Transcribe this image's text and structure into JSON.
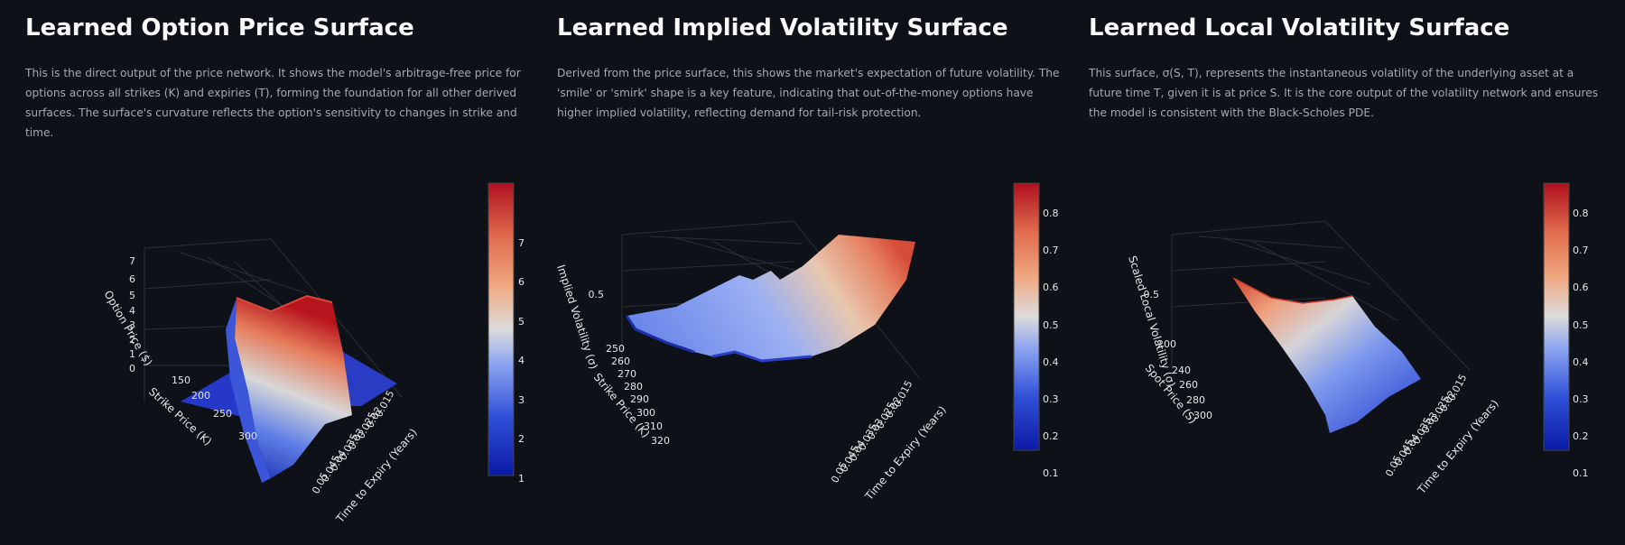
{
  "colors": {
    "background": "#0e1117",
    "text": "#fafafa",
    "muted": "#a3a8b4"
  },
  "panels": [
    {
      "title": "Learned Option Price Surface",
      "description": "This is the direct output of the price network. It shows the model's arbitrage-free price for options across all strikes (K) and expiries (T), forming the foundation for all other derived surfaces. The surface's curvature reflects the option's sensitivity to changes in strike and time."
    },
    {
      "title": "Learned Implied Volatility Surface",
      "description": "Derived from the price surface, this shows the market's expectation of future volatility. The 'smile' or 'smirk' shape is a key feature, indicating that out-of-the-money options have higher implied volatility, reflecting demand for tail-risk protection."
    },
    {
      "title": "Learned Local Volatility Surface",
      "description": "This surface, σ(S, T), represents the instantaneous volatility of the underlying asset at a future time T, given it is at price S. It is the core output of the volatility network and ensures the model is consistent with the Black-Scholes PDE."
    }
  ],
  "chart_data": [
    {
      "type": "surface",
      "xlabel": "Strike Price (K)",
      "ylabel": "Time to Expiry (Years)",
      "zlabel": "Option Price ($)",
      "x_ticks": [
        "150",
        "200",
        "250",
        "300"
      ],
      "y_ticks": [
        "0.015",
        "0.02",
        "0.025",
        "0.03",
        "0.035",
        "0.04",
        "0.045",
        "0.05"
      ],
      "z_ticks": [
        "0",
        "1",
        "2",
        "3",
        "4",
        "5",
        "6",
        "7"
      ],
      "colorbar_ticks": [
        "1",
        "2",
        "3",
        "4",
        "5",
        "6",
        "7"
      ],
      "colorscale": "coolwarm",
      "zlim": [
        0,
        7.4
      ]
    },
    {
      "type": "surface",
      "xlabel": "Strike Price (K)",
      "ylabel": "Time to Expiry (Years)",
      "zlabel": "Implied Volatility (σ)",
      "x_ticks": [
        "250",
        "260",
        "270",
        "280",
        "290",
        "300",
        "310",
        "320"
      ],
      "y_ticks": [
        "0.015",
        "0.02",
        "0.025",
        "0.03",
        "0.035",
        "0.04",
        "0.045",
        "0.05"
      ],
      "z_ticks": [
        "0.5"
      ],
      "colorbar_ticks": [
        "0.1",
        "0.2",
        "0.3",
        "0.4",
        "0.5",
        "0.6",
        "0.7",
        "0.8"
      ],
      "colorscale": "coolwarm",
      "zlim": [
        0.05,
        0.87
      ]
    },
    {
      "type": "surface",
      "xlabel": "Spot Price (S)",
      "ylabel": "Time to Expiry (Years)",
      "zlabel": "Scaled Local Volatility (σ)",
      "x_ticks": [
        "200",
        "240",
        "260",
        "280",
        "300"
      ],
      "y_ticks": [
        "0.015",
        "0.02",
        "0.025",
        "0.03",
        "0.035",
        "0.04",
        "0.045",
        "0.05"
      ],
      "z_ticks": [
        "0.5"
      ],
      "colorbar_ticks": [
        "0.1",
        "0.2",
        "0.3",
        "0.4",
        "0.5",
        "0.6",
        "0.7",
        "0.8"
      ],
      "colorscale": "coolwarm",
      "zlim": [
        0.05,
        0.87
      ]
    }
  ]
}
